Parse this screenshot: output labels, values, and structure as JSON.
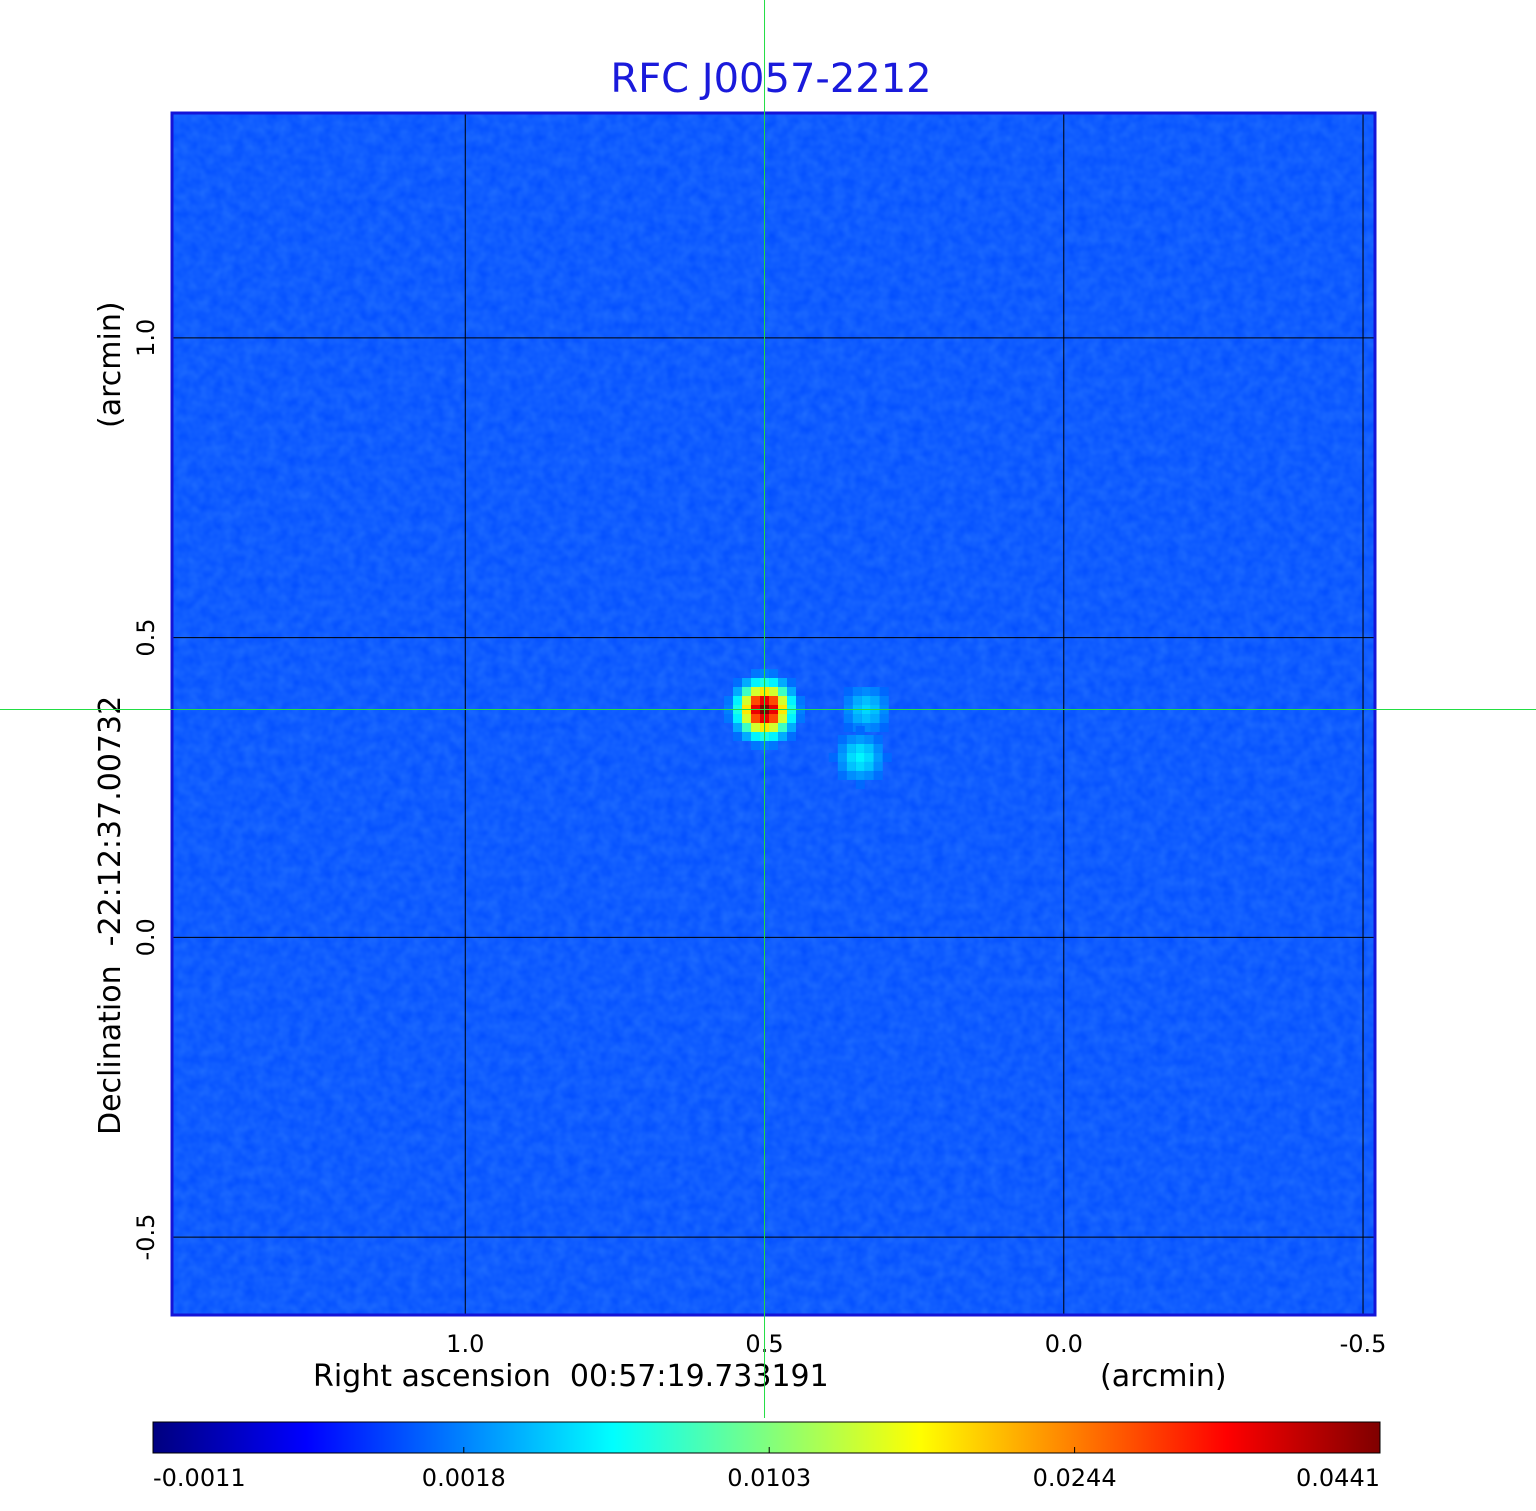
{
  "chart_data": {
    "type": "image",
    "title": "RFC J0057-2212",
    "xlabel": "Right ascension  00:57:19.733191",
    "xunit": "(arcmin)",
    "ylabel": "Declination  -22:12:37.00732",
    "yunit": "(arcmin)",
    "xlim": [
      1.49,
      -0.52
    ],
    "ylim": [
      -0.63,
      1.375
    ],
    "xticks": [
      {
        "value": 1,
        "label": "1.0"
      },
      0.5,
      {
        "value": 0,
        "label": "0.0"
      },
      -0.5
    ],
    "yticks": [
      -0.5,
      {
        "value": 0,
        "label": "0.0"
      },
      0.5,
      {
        "value": 1,
        "label": "1.0"
      }
    ],
    "grid": true,
    "colormap": "jet",
    "colorbar_scale": "sqrt",
    "clim": [
      -0.0011,
      0.0441
    ],
    "colorbar_ticks": [
      -0.0011,
      0.0018,
      0.0103,
      0.0244,
      0.0441
    ],
    "background": 0.0007,
    "sources": [
      {
        "x": 0.5,
        "y": 0.38,
        "peak": 0.0441
      },
      {
        "x": 0.33,
        "y": 0.38,
        "peak": 0.004
      },
      {
        "x": 0.34,
        "y": 0.3,
        "peak": 0.005
      }
    ],
    "crosshair": {
      "x": 0.5,
      "y": 0.38
    }
  }
}
